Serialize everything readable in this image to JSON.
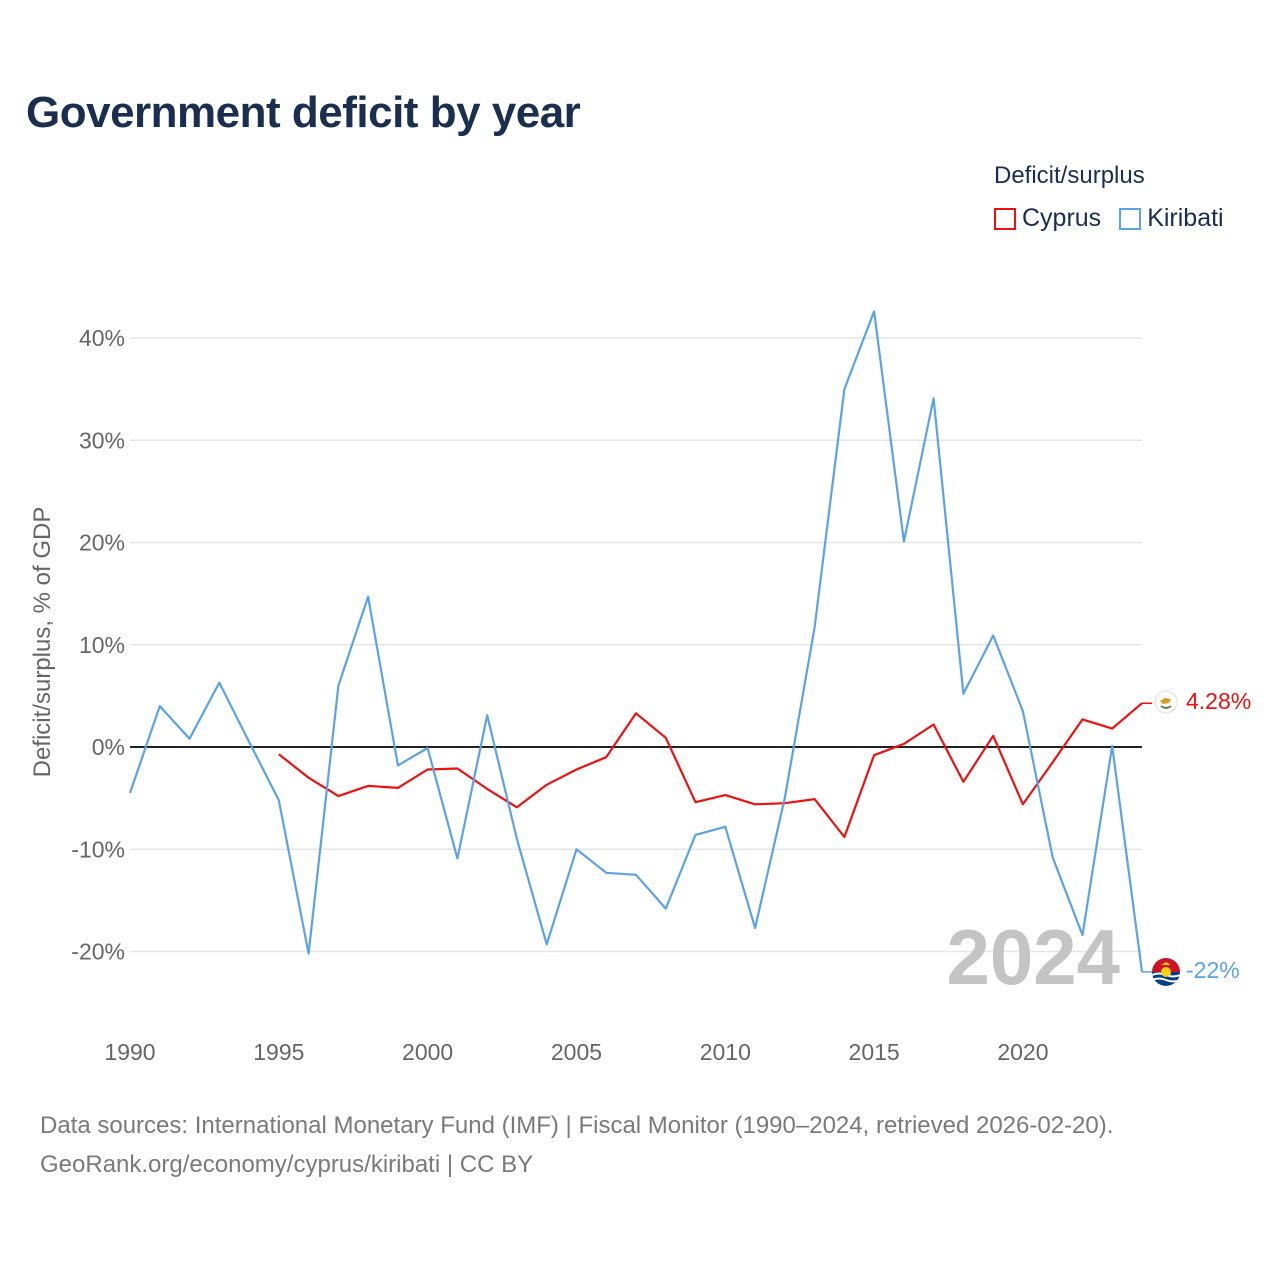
{
  "title": "Government deficit by year",
  "legend": {
    "title": "Deficit/surplus",
    "items": [
      {
        "name": "Cyprus",
        "color": "#ee1111"
      },
      {
        "name": "Kiribati",
        "color": "#5ba3e6"
      }
    ]
  },
  "year_watermark": "2024",
  "footer": {
    "line1": "Data sources: International Monetary Fund (IMF) | Fiscal Monitor (1990–2024, retrieved 2026-02-20).",
    "line2": "GeoRank.org/economy/cyprus/kiribati | CC BY"
  },
  "end_labels": {
    "cyprus": "4.28%",
    "kiribati": "-22%"
  },
  "chart_data": {
    "type": "line",
    "title": "Government deficit by year",
    "xlabel": "",
    "ylabel": "Deficit/surplus, % of GDP",
    "xlim": [
      1990,
      2024
    ],
    "ylim": [
      -25,
      43
    ],
    "xticks": [
      1990,
      1995,
      2000,
      2005,
      2010,
      2015,
      2020
    ],
    "yticks": [
      -20,
      -10,
      0,
      10,
      20,
      30,
      40
    ],
    "ytick_labels": [
      "-20%",
      "-10%",
      "0%",
      "10%",
      "20%",
      "30%",
      "40%"
    ],
    "series": [
      {
        "name": "Cyprus",
        "color": "#ee1111",
        "x": [
          1995,
          1996,
          1997,
          1998,
          1999,
          2000,
          2001,
          2002,
          2003,
          2004,
          2005,
          2006,
          2007,
          2008,
          2009,
          2010,
          2011,
          2012,
          2013,
          2014,
          2015,
          2016,
          2017,
          2018,
          2019,
          2020,
          2021,
          2022,
          2023,
          2024
        ],
        "values": [
          -0.7,
          -3.0,
          -4.8,
          -3.8,
          -4.0,
          -2.2,
          -2.1,
          -4.1,
          -5.9,
          -3.7,
          -2.2,
          -1.0,
          3.3,
          0.9,
          -5.4,
          -4.7,
          -5.6,
          -5.5,
          -5.1,
          -8.8,
          -0.8,
          0.3,
          2.2,
          -3.4,
          1.1,
          -5.6,
          -1.5,
          2.7,
          1.8,
          4.28
        ]
      },
      {
        "name": "Kiribati",
        "color": "#5ba3e6",
        "x": [
          1990,
          1991,
          1992,
          1993,
          1994,
          1995,
          1996,
          1997,
          1998,
          1999,
          2000,
          2001,
          2002,
          2003,
          2004,
          2005,
          2006,
          2007,
          2008,
          2009,
          2010,
          2011,
          2012,
          2013,
          2014,
          2015,
          2016,
          2017,
          2018,
          2019,
          2020,
          2021,
          2022,
          2023,
          2024
        ],
        "values": [
          -4.5,
          4.0,
          0.8,
          6.3,
          0.5,
          -5.2,
          -20.2,
          6.0,
          14.7,
          -1.8,
          -0.1,
          -10.9,
          3.1,
          -9.0,
          -19.3,
          -10.0,
          -12.3,
          -12.5,
          -15.8,
          -8.6,
          -7.8,
          -17.7,
          -5.0,
          11.7,
          35.0,
          42.6,
          20.1,
          34.1,
          5.2,
          10.9,
          3.5,
          -10.8,
          -18.4,
          0.1,
          -22.0
        ]
      }
    ]
  }
}
